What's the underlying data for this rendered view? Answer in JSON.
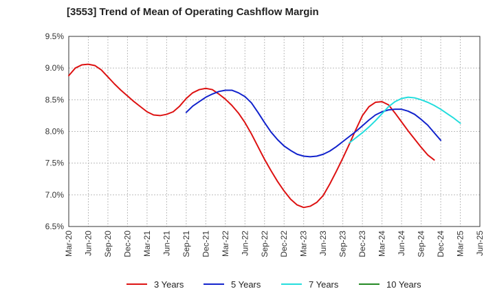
{
  "chart_data": {
    "type": "line",
    "title": "[3553]  Trend of Mean of Operating Cashflow Margin",
    "xlabel": "",
    "ylabel": "",
    "ylim": [
      6.5,
      9.5
    ],
    "yticks": [
      "6.5%",
      "7.0%",
      "7.5%",
      "8.0%",
      "8.5%",
      "9.0%",
      "9.5%"
    ],
    "ytick_values": [
      6.5,
      7.0,
      7.5,
      8.0,
      8.5,
      9.0,
      9.5
    ],
    "xticks": [
      "Mar-20",
      "Jun-20",
      "Sep-20",
      "Dec-20",
      "Mar-21",
      "Jun-21",
      "Sep-21",
      "Dec-21",
      "Mar-22",
      "Jun-22",
      "Sep-22",
      "Dec-22",
      "Mar-23",
      "Jun-23",
      "Sep-23",
      "Dec-23",
      "Mar-24",
      "Jun-24",
      "Sep-24",
      "Dec-24",
      "Mar-25",
      "Jun-25"
    ],
    "grid": true,
    "legend_position": "bottom",
    "series": [
      {
        "name": "3 Years",
        "color": "#dd1111",
        "start_index": 0,
        "values": [
          8.88,
          9.0,
          9.05,
          9.06,
          9.04,
          8.97,
          8.86,
          8.75,
          8.65,
          8.56,
          8.47,
          8.39,
          8.31,
          8.26,
          8.25,
          8.27,
          8.31,
          8.4,
          8.52,
          8.61,
          8.66,
          8.68,
          8.66,
          8.59,
          8.51,
          8.41,
          8.29,
          8.14,
          7.96,
          7.76,
          7.56,
          7.38,
          7.21,
          7.06,
          6.93,
          6.84,
          6.8,
          6.82,
          6.88,
          6.99,
          7.17,
          7.37,
          7.58,
          7.8,
          8.03,
          8.25,
          8.39,
          8.46,
          8.47,
          8.42,
          8.29,
          8.15,
          8.01,
          7.88,
          7.75,
          7.63,
          7.55
        ]
      },
      {
        "name": "5 Years",
        "color": "#1122cc",
        "start_index": 18,
        "values": [
          8.3,
          8.4,
          8.47,
          8.54,
          8.59,
          8.63,
          8.65,
          8.65,
          8.61,
          8.55,
          8.45,
          8.3,
          8.14,
          7.99,
          7.87,
          7.77,
          7.7,
          7.64,
          7.61,
          7.6,
          7.61,
          7.64,
          7.69,
          7.76,
          7.84,
          7.92,
          8.0,
          8.09,
          8.18,
          8.26,
          8.31,
          8.34,
          8.35,
          8.35,
          8.32,
          8.27,
          8.19,
          8.1,
          7.98,
          7.86
        ]
      },
      {
        "name": "7 Years",
        "color": "#22dddd",
        "start_index": 43,
        "values": [
          7.82,
          7.9,
          7.98,
          8.07,
          8.17,
          8.28,
          8.39,
          8.47,
          8.52,
          8.54,
          8.53,
          8.5,
          8.46,
          8.41,
          8.35,
          8.28,
          8.21,
          8.13
        ]
      },
      {
        "name": "10 Years",
        "color": "#228822",
        "start_index": 0,
        "values": []
      }
    ]
  }
}
